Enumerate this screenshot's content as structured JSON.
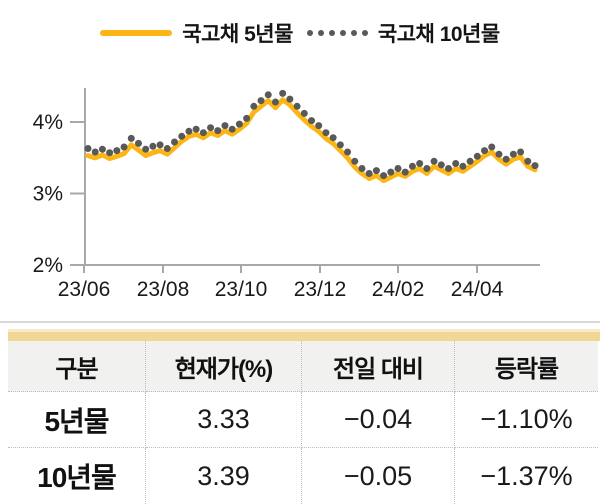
{
  "chart_data": {
    "type": "line",
    "title": "",
    "legend_position": "top",
    "grid": false,
    "ylim": [
      2,
      4.5
    ],
    "y_axis": {
      "ticks": [
        {
          "label": "4%",
          "value": 4
        },
        {
          "label": "3%",
          "value": 3
        },
        {
          "label": "2%",
          "value": 2
        }
      ]
    },
    "x_axis": {
      "tick_labels": [
        "23/06",
        "23/08",
        "23/10",
        "23/12",
        "24/02",
        "24/04"
      ],
      "range_note": "monthly ticks Jun 2023 - Apr 2024, data through mid-May 2024"
    },
    "series": [
      {
        "name": "국고채 5년물",
        "style": "solid-line",
        "color": "#fbb615",
        "values": [
          3.53,
          3.5,
          3.54,
          3.49,
          3.52,
          3.56,
          3.68,
          3.61,
          3.53,
          3.57,
          3.6,
          3.55,
          3.64,
          3.73,
          3.8,
          3.83,
          3.78,
          3.85,
          3.81,
          3.88,
          3.83,
          3.9,
          3.98,
          4.14,
          4.22,
          4.3,
          4.2,
          4.31,
          4.24,
          4.13,
          4.03,
          3.94,
          3.87,
          3.77,
          3.7,
          3.6,
          3.5,
          3.37,
          3.28,
          3.21,
          3.25,
          3.18,
          3.23,
          3.28,
          3.24,
          3.31,
          3.35,
          3.28,
          3.38,
          3.33,
          3.28,
          3.35,
          3.31,
          3.38,
          3.45,
          3.53,
          3.58,
          3.48,
          3.41,
          3.48,
          3.51,
          3.38,
          3.33
        ]
      },
      {
        "name": "국고채 10년물",
        "style": "dotted-markers",
        "color": "#595959",
        "values": [
          3.63,
          3.58,
          3.62,
          3.57,
          3.6,
          3.65,
          3.77,
          3.7,
          3.62,
          3.66,
          3.68,
          3.63,
          3.72,
          3.8,
          3.87,
          3.9,
          3.85,
          3.92,
          3.88,
          3.95,
          3.9,
          3.97,
          4.05,
          4.22,
          4.3,
          4.38,
          4.28,
          4.4,
          4.32,
          4.22,
          4.12,
          4.02,
          3.95,
          3.85,
          3.78,
          3.68,
          3.58,
          3.45,
          3.35,
          3.28,
          3.32,
          3.25,
          3.3,
          3.35,
          3.3,
          3.38,
          3.42,
          3.35,
          3.45,
          3.4,
          3.35,
          3.42,
          3.38,
          3.45,
          3.52,
          3.6,
          3.65,
          3.55,
          3.48,
          3.55,
          3.58,
          3.45,
          3.39
        ]
      }
    ]
  },
  "table": {
    "headers": [
      "구분",
      "현재가(%)",
      "전일 대비",
      "등락률"
    ],
    "rows": [
      [
        "5년물",
        "3.33",
        "−0.04",
        "−1.10%"
      ],
      [
        "10년물",
        "3.39",
        "−0.05",
        "−1.37%"
      ]
    ]
  },
  "colors": {
    "line_5yr": "#fbb615",
    "dot_10yr": "#595959",
    "axis": "#a8a8a8",
    "table_band": "#f0d894",
    "header_bg": "#f1f1ef"
  }
}
